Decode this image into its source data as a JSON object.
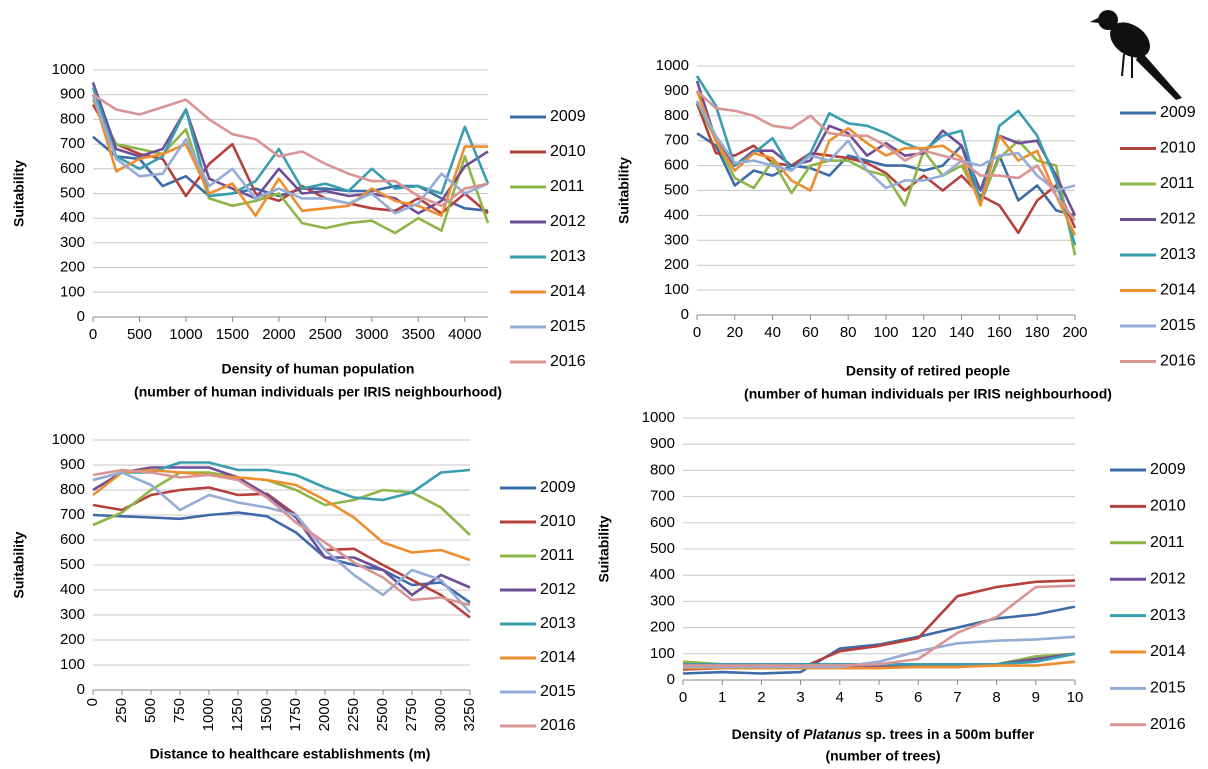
{
  "chart_data": [
    {
      "type": "line",
      "ylabel": "Suitability",
      "xlabel": [
        "Density of human population",
        "(number of human individuals per IRIS neighbourhood)"
      ],
      "x": [
        0,
        250,
        500,
        750,
        1000,
        1250,
        1500,
        1750,
        2000,
        2250,
        2500,
        2750,
        3000,
        3250,
        3500,
        3750,
        4000,
        4250
      ],
      "xlim": [
        0,
        4250
      ],
      "xticks": [
        0,
        500,
        1000,
        1500,
        2000,
        2500,
        3000,
        3500,
        4000
      ],
      "ylim": [
        0,
        1000
      ],
      "yticks": [
        0,
        100,
        200,
        300,
        400,
        500,
        600,
        700,
        800,
        900,
        1000
      ],
      "grid": true,
      "series": [
        {
          "name": "2009",
          "color": "#3d6ba8",
          "values": [
            730,
            650,
            640,
            530,
            570,
            490,
            500,
            520,
            490,
            520,
            520,
            510,
            510,
            530,
            530,
            480,
            440,
            430
          ]
        },
        {
          "name": "2010",
          "color": "#b5403c",
          "values": [
            860,
            700,
            660,
            640,
            490,
            620,
            700,
            500,
            470,
            530,
            480,
            460,
            440,
            430,
            480,
            420,
            500,
            420
          ]
        },
        {
          "name": "2011",
          "color": "#8db547",
          "values": [
            880,
            700,
            680,
            660,
            760,
            480,
            450,
            470,
            500,
            380,
            360,
            380,
            390,
            340,
            400,
            350,
            650,
            380
          ]
        },
        {
          "name": "2012",
          "color": "#6f4e98",
          "values": [
            950,
            680,
            650,
            680,
            840,
            560,
            520,
            480,
            600,
            500,
            510,
            490,
            500,
            480,
            420,
            470,
            610,
            670
          ]
        },
        {
          "name": "2013",
          "color": "#3a9db0",
          "values": [
            930,
            650,
            600,
            650,
            840,
            490,
            500,
            550,
            680,
            520,
            540,
            510,
            600,
            520,
            530,
            500,
            770,
            540
          ]
        },
        {
          "name": "2014",
          "color": "#ee8e30",
          "values": [
            900,
            590,
            640,
            660,
            700,
            500,
            540,
            410,
            560,
            430,
            440,
            450,
            520,
            470,
            450,
            410,
            690,
            690
          ]
        },
        {
          "name": "2015",
          "color": "#95acd6",
          "values": [
            900,
            640,
            570,
            580,
            720,
            530,
            600,
            480,
            520,
            480,
            480,
            460,
            500,
            420,
            460,
            580,
            500,
            540
          ]
        },
        {
          "name": "2016",
          "color": "#d99594",
          "values": [
            900,
            840,
            820,
            850,
            880,
            800,
            740,
            720,
            650,
            670,
            620,
            580,
            550,
            550,
            490,
            450,
            520,
            540
          ]
        }
      ]
    },
    {
      "type": "line",
      "ylabel": "Suitability",
      "xlabel": [
        "Density of retired people",
        "(number of human individuals per IRIS neighbourhood)"
      ],
      "x": [
        0,
        10,
        20,
        30,
        40,
        50,
        60,
        70,
        80,
        90,
        100,
        110,
        120,
        130,
        140,
        150,
        160,
        170,
        180,
        190,
        200
      ],
      "xlim": [
        0,
        200
      ],
      "xticks": [
        0,
        20,
        40,
        60,
        80,
        100,
        120,
        140,
        160,
        180,
        200
      ],
      "ylim": [
        0,
        1000
      ],
      "yticks": [
        0,
        100,
        200,
        300,
        400,
        500,
        600,
        700,
        800,
        900,
        1000
      ],
      "grid": true,
      "series": [
        {
          "name": "2009",
          "color": "#3d6ba8",
          "values": [
            730,
            680,
            520,
            580,
            560,
            600,
            590,
            560,
            640,
            620,
            600,
            600,
            580,
            600,
            680,
            450,
            640,
            460,
            520,
            420,
            400
          ]
        },
        {
          "name": "2010",
          "color": "#b5403c",
          "values": [
            850,
            650,
            640,
            680,
            610,
            600,
            650,
            640,
            630,
            610,
            570,
            500,
            560,
            500,
            560,
            480,
            440,
            330,
            460,
            520,
            350
          ]
        },
        {
          "name": "2011",
          "color": "#8db547",
          "values": [
            860,
            700,
            550,
            510,
            620,
            490,
            600,
            620,
            620,
            580,
            560,
            440,
            660,
            560,
            600,
            460,
            630,
            700,
            620,
            600,
            240
          ]
        },
        {
          "name": "2012",
          "color": "#6f4e98",
          "values": [
            940,
            700,
            600,
            660,
            660,
            600,
            620,
            760,
            730,
            640,
            690,
            640,
            650,
            740,
            680,
            500,
            720,
            690,
            700,
            560,
            400
          ]
        },
        {
          "name": "2013",
          "color": "#3a9db0",
          "values": [
            960,
            840,
            600,
            650,
            710,
            580,
            650,
            810,
            770,
            760,
            730,
            690,
            660,
            720,
            740,
            450,
            760,
            820,
            720,
            540,
            280
          ]
        },
        {
          "name": "2014",
          "color": "#ee8e30",
          "values": [
            900,
            700,
            580,
            650,
            630,
            540,
            500,
            700,
            750,
            690,
            640,
            670,
            670,
            680,
            630,
            440,
            720,
            620,
            660,
            480,
            320
          ]
        },
        {
          "name": "2015",
          "color": "#95acd6",
          "values": [
            860,
            720,
            610,
            620,
            600,
            580,
            640,
            620,
            700,
            580,
            510,
            540,
            540,
            560,
            620,
            600,
            640,
            650,
            560,
            500,
            520
          ]
        },
        {
          "name": "2016",
          "color": "#d99594",
          "values": [
            900,
            830,
            820,
            800,
            760,
            750,
            800,
            730,
            720,
            720,
            680,
            620,
            660,
            640,
            620,
            560,
            560,
            550,
            600,
            480,
            380
          ]
        }
      ]
    },
    {
      "type": "line",
      "ylabel": "Suitability",
      "xlabel": [
        "Distance to healthcare establishments (m)"
      ],
      "x": [
        0,
        250,
        500,
        750,
        1000,
        1250,
        1500,
        1750,
        2000,
        2250,
        2500,
        2750,
        3000,
        3250
      ],
      "xlim": [
        0,
        3250
      ],
      "xticks": [
        0,
        250,
        500,
        750,
        1000,
        1250,
        1500,
        1750,
        2000,
        2250,
        2500,
        2750,
        3000,
        3250
      ],
      "ylim": [
        0,
        1000
      ],
      "yticks": [
        0,
        100,
        200,
        300,
        400,
        500,
        600,
        700,
        800,
        900,
        1000
      ],
      "grid": true,
      "series": [
        {
          "name": "2009",
          "color": "#3d6ba8",
          "values": [
            700,
            695,
            690,
            685,
            700,
            710,
            695,
            630,
            530,
            500,
            480,
            420,
            430,
            350
          ]
        },
        {
          "name": "2010",
          "color": "#b5403c",
          "values": [
            740,
            720,
            780,
            800,
            810,
            780,
            785,
            700,
            560,
            565,
            500,
            440,
            380,
            290
          ]
        },
        {
          "name": "2011",
          "color": "#8db547",
          "values": [
            660,
            710,
            800,
            870,
            870,
            850,
            840,
            800,
            740,
            760,
            800,
            790,
            730,
            620
          ]
        },
        {
          "name": "2012",
          "color": "#6f4e98",
          "values": [
            800,
            870,
            890,
            890,
            890,
            850,
            780,
            690,
            530,
            530,
            480,
            380,
            460,
            410
          ]
        },
        {
          "name": "2013",
          "color": "#3a9db0",
          "values": [
            840,
            870,
            870,
            910,
            910,
            880,
            880,
            860,
            810,
            770,
            760,
            790,
            870,
            880
          ]
        },
        {
          "name": "2014",
          "color": "#ee8e30",
          "values": [
            780,
            870,
            880,
            870,
            860,
            850,
            840,
            820,
            760,
            690,
            590,
            550,
            560,
            520
          ]
        },
        {
          "name": "2015",
          "color": "#95acd6",
          "values": [
            840,
            870,
            820,
            720,
            780,
            750,
            730,
            700,
            560,
            460,
            380,
            480,
            440,
            310
          ]
        },
        {
          "name": "2016",
          "color": "#d99594",
          "values": [
            860,
            880,
            870,
            850,
            860,
            840,
            770,
            670,
            590,
            510,
            450,
            360,
            370,
            340
          ]
        }
      ]
    },
    {
      "type": "line",
      "ylabel": "Suitability",
      "xlabel": [
        [
          "Density of ",
          "Platanus",
          " sp. trees in a 500m buffer"
        ],
        "(number of trees)"
      ],
      "x": [
        0,
        1,
        2,
        3,
        4,
        5,
        6,
        7,
        8,
        9,
        10
      ],
      "xlim": [
        0,
        10
      ],
      "xticks": [
        0,
        1,
        2,
        3,
        4,
        5,
        6,
        7,
        8,
        9,
        10
      ],
      "ylim": [
        0,
        1000
      ],
      "yticks": [
        0,
        100,
        200,
        300,
        400,
        500,
        600,
        700,
        800,
        900,
        1000
      ],
      "grid": true,
      "series": [
        {
          "name": "2009",
          "color": "#3d6ba8",
          "values": [
            25,
            30,
            25,
            30,
            120,
            135,
            165,
            200,
            235,
            250,
            280
          ]
        },
        {
          "name": "2010",
          "color": "#b5403c",
          "values": [
            40,
            45,
            45,
            45,
            110,
            130,
            160,
            320,
            355,
            375,
            380
          ]
        },
        {
          "name": "2011",
          "color": "#8db547",
          "values": [
            70,
            60,
            60,
            60,
            60,
            55,
            55,
            55,
            60,
            90,
            100
          ]
        },
        {
          "name": "2012",
          "color": "#6f4e98",
          "values": [
            50,
            50,
            50,
            50,
            50,
            50,
            50,
            50,
            60,
            80,
            100
          ]
        },
        {
          "name": "2013",
          "color": "#3a9db0",
          "values": [
            60,
            60,
            60,
            60,
            60,
            60,
            60,
            60,
            60,
            70,
            100
          ]
        },
        {
          "name": "2014",
          "color": "#ee8e30",
          "values": [
            45,
            45,
            45,
            45,
            45,
            45,
            50,
            50,
            55,
            55,
            70
          ]
        },
        {
          "name": "2015",
          "color": "#95acd6",
          "values": [
            50,
            50,
            50,
            50,
            50,
            70,
            110,
            140,
            150,
            155,
            165
          ]
        },
        {
          "name": "2016",
          "color": "#d99594",
          "values": [
            55,
            55,
            55,
            55,
            55,
            60,
            80,
            180,
            240,
            355,
            360
          ]
        }
      ]
    }
  ]
}
